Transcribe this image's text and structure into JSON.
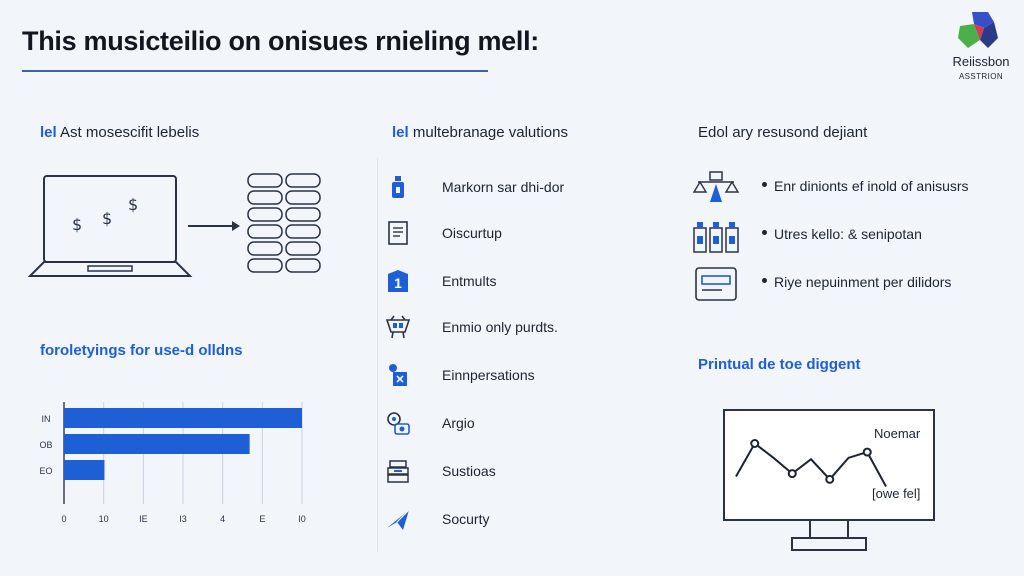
{
  "header": {
    "title": "This musicteilio on onisues rnieling mell:",
    "logo_name": "Reiissbon",
    "logo_sub": "ASSTRION"
  },
  "left": {
    "section_top": {
      "prefix": "lel",
      "text": "Ast mosescifit lebelis"
    },
    "section_bottom": {
      "text": "foroletyings for use-d olldns"
    }
  },
  "middle": {
    "heading": {
      "prefix": "lel",
      "text": "multebranage valutions"
    },
    "items": [
      {
        "label": "Markorn sar dhi-dor",
        "icon": "bottle-icon"
      },
      {
        "label": "Oiscurtup",
        "icon": "document-icon"
      },
      {
        "label": "Entmults",
        "icon": "number-badge-icon",
        "badge": "1"
      },
      {
        "label": "Enmio only purdts.",
        "icon": "basket-icon"
      },
      {
        "label": "Einnpersations",
        "icon": "person-card-icon"
      },
      {
        "label": "Argio",
        "icon": "gears-icon"
      },
      {
        "label": "Sustioas",
        "icon": "stack-icon"
      },
      {
        "label": "Socurty",
        "icon": "plane-icon"
      }
    ]
  },
  "right": {
    "heading": {
      "text": "Edol ary resusond dejiant"
    },
    "items": [
      {
        "label": "Enr dinionts ef inold of anisusrs",
        "icon": "scale-icon"
      },
      {
        "label": "Utres kello: & senipotan",
        "icon": "bottles-icon"
      },
      {
        "label": "Riye nepuinment per dilidors",
        "icon": "panel-icon"
      }
    ],
    "monitor_heading": "Printual de toe diggent",
    "monitor_label_top": "Noemar",
    "monitor_label_bottom": "[owe fel]"
  },
  "chart_data": {
    "type": "bar",
    "orientation": "horizontal",
    "categories": [
      "IN",
      "OB",
      "EO"
    ],
    "values": [
      10,
      7.8,
      1.7
    ],
    "xlim": [
      0,
      10
    ],
    "xtick_labels": [
      "0",
      "10",
      "IE",
      "I3",
      "4",
      "E",
      "I0"
    ],
    "bar_color": "#1f5fd6",
    "grid": true
  },
  "line_chart": {
    "type": "line",
    "values": [
      2.2,
      4.5,
      3.5,
      2.4,
      3.4,
      2.0,
      3.5,
      3.9,
      1.5
    ],
    "ylim": [
      0,
      6
    ],
    "line_color": "#1d2430"
  },
  "colors": {
    "accent": "#1f5fd6",
    "text": "#1d2430",
    "rule": "#3c5fb0"
  }
}
